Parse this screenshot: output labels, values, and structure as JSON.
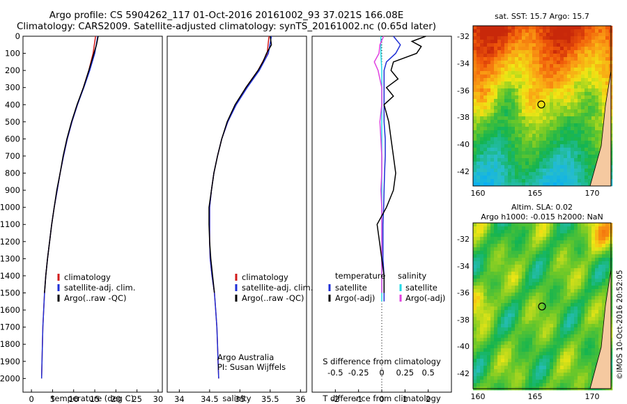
{
  "header": {
    "title_line1": "Argo profile: CS 5904262_117 01-Oct-2016 20161002_93 37.021S 166.08E",
    "title_line2": "Climatology: CARS2009. Satellite-adjusted climatology: synTS_20161002.nc (0.65d later)"
  },
  "colors": {
    "climatology": "#d11a1a",
    "satellite": "#1f2fd6",
    "argo": "#000000",
    "salinity_sat": "#22d8e6",
    "salinity_argo": "#e040e0"
  },
  "depth_axis": {
    "ticks": [
      0,
      100,
      200,
      300,
      400,
      500,
      600,
      700,
      800,
      900,
      1000,
      1100,
      1200,
      1300,
      1400,
      1500,
      1600,
      1700,
      1800,
      1900,
      2000
    ]
  },
  "panel_temperature": {
    "xlabel": "temperature (deg C)",
    "xticks": [
      0,
      5,
      10,
      15,
      20,
      25,
      30
    ],
    "xlim": [
      -2,
      31
    ],
    "legend": [
      "climatology",
      "satellite-adj. clim.",
      "Argo(..raw -QC)"
    ]
  },
  "panel_salinity": {
    "xlabel": "salinity",
    "xticks": [
      "34",
      "34.5",
      "35",
      "35.5",
      "36"
    ],
    "xlim": [
      33.8,
      36.1
    ],
    "legend": [
      "climatology",
      "satellite-adj. clim.",
      "Argo(..raw -QC)"
    ],
    "credit_line1": "Argo Australia",
    "credit_line2": "PI: Susan Wijffels"
  },
  "panel_diff": {
    "top_xlabel": "S difference from climatology",
    "top_xticks": [
      "-0.5",
      "-0.25",
      "0",
      "0.25",
      "0.5"
    ],
    "bottom_xlabel": "T difference from climatology",
    "bottom_xticks": [
      "-2",
      "-1",
      "0",
      "1",
      "2"
    ],
    "legend_temp_title": "temperature",
    "legend_temp": [
      "satellite",
      "Argo(-adj)"
    ],
    "legend_sal_title": "salinity",
    "legend_sal": [
      "satellite",
      "Argo(-adj)"
    ]
  },
  "map_sst": {
    "title": "sat. SST: 15.7  Argo: 15.7",
    "yticks": [
      "-32",
      "-34",
      "-36",
      "-38",
      "-40",
      "-42"
    ],
    "xticks": [
      "160",
      "165",
      "170"
    ]
  },
  "map_sla": {
    "title_line1": "Altim. SLA: 0.02",
    "title_line2": "Argo h1000: -0.015 h2000: NaN",
    "yticks": [
      "-32",
      "-34",
      "-36",
      "-38",
      "-40",
      "-42"
    ],
    "xticks": [
      "160",
      "165",
      "170"
    ]
  },
  "stamp": "©IMOS 10-Oct-2016 20:52:05",
  "chart_data": [
    {
      "type": "line",
      "xlabel": "temperature (deg C)",
      "ylabel": "",
      "y_reversed": true,
      "xlim": [
        -2,
        31
      ],
      "ylim": [
        2000,
        0
      ],
      "series": [
        {
          "name": "climatology",
          "y": [
            0,
            100,
            200,
            300,
            400,
            500,
            600,
            700,
            800,
            900,
            1000,
            1100,
            1200,
            1300,
            1400,
            1500,
            1600,
            1700,
            1800,
            1900,
            2000
          ],
          "x": [
            15.2,
            14.6,
            13.6,
            12.3,
            10.9,
            9.6,
            8.5,
            7.6,
            6.8,
            6.1,
            5.4,
            4.8,
            4.3,
            3.8,
            3.4,
            3.1,
            2.9,
            2.7,
            2.6,
            2.5,
            2.4
          ]
        },
        {
          "name": "satellite-adj. clim.",
          "y": [
            0,
            100,
            200,
            300,
            400,
            500,
            600,
            700,
            800,
            900,
            1000,
            1100,
            1200,
            1300,
            1400,
            1500,
            1600,
            1700,
            1800,
            1900,
            2000
          ],
          "x": [
            15.7,
            15.0,
            13.8,
            12.4,
            10.9,
            9.6,
            8.5,
            7.6,
            6.8,
            6.1,
            5.4,
            4.8,
            4.3,
            3.8,
            3.4,
            3.1,
            2.9,
            2.7,
            2.6,
            2.5,
            2.4
          ]
        },
        {
          "name": "Argo(..raw -QC)",
          "y": [
            0,
            50,
            100,
            150,
            200,
            300,
            400,
            500,
            600,
            700,
            800,
            900,
            1000,
            1100,
            1200,
            1300,
            1400,
            1500
          ],
          "x": [
            15.8,
            15.4,
            14.8,
            14.2,
            13.6,
            12.3,
            10.8,
            9.5,
            8.4,
            7.5,
            6.8,
            6.0,
            5.4,
            4.8,
            4.3,
            3.8,
            3.4,
            3.1
          ]
        }
      ]
    },
    {
      "type": "line",
      "xlabel": "salinity",
      "ylabel": "",
      "y_reversed": true,
      "xlim": [
        33.8,
        36.1
      ],
      "ylim": [
        2000,
        0
      ],
      "series": [
        {
          "name": "climatology",
          "y": [
            0,
            100,
            200,
            300,
            400,
            500,
            600,
            700,
            800,
            900,
            1000,
            1100,
            1200,
            1300,
            1400,
            1500,
            1600,
            1700,
            1800,
            1900,
            2000
          ],
          "x": [
            35.48,
            35.45,
            35.3,
            35.1,
            34.93,
            34.8,
            34.7,
            34.63,
            34.57,
            34.53,
            34.5,
            34.5,
            34.5,
            34.51,
            34.54,
            34.58,
            34.6,
            34.62,
            34.63,
            34.64,
            34.65
          ]
        },
        {
          "name": "satellite-adj. clim.",
          "y": [
            0,
            100,
            200,
            300,
            400,
            500,
            600,
            700,
            800,
            900,
            1000,
            1100,
            1200,
            1300,
            1400,
            1500,
            1600,
            1700,
            1800,
            1900,
            2000
          ],
          "x": [
            35.52,
            35.47,
            35.32,
            35.12,
            34.94,
            34.8,
            34.7,
            34.63,
            34.57,
            34.53,
            34.5,
            34.5,
            34.5,
            34.51,
            34.54,
            34.58,
            34.6,
            34.62,
            34.63,
            34.64,
            34.65
          ]
        },
        {
          "name": "Argo(..raw -QC)",
          "y": [
            0,
            50,
            100,
            150,
            200,
            300,
            400,
            500,
            600,
            700,
            800,
            900,
            1000,
            1100,
            1200,
            1300,
            1400,
            1500
          ],
          "x": [
            35.5,
            35.52,
            35.44,
            35.38,
            35.3,
            35.1,
            34.92,
            34.79,
            34.7,
            34.63,
            34.57,
            34.53,
            34.49,
            34.49,
            34.5,
            34.52,
            34.55,
            34.58
          ]
        }
      ]
    },
    {
      "type": "line",
      "xlabel": "T difference from climatology",
      "ylabel": "",
      "y_reversed": true,
      "xlim": [
        -3,
        3
      ],
      "ylim": [
        2000,
        0
      ],
      "series": [
        {
          "name": "satellite",
          "y": [
            0,
            50,
            100,
            150,
            200,
            300,
            400,
            500,
            600,
            700,
            800,
            900,
            1000,
            1100,
            1200,
            1300,
            1400,
            1500,
            1550
          ],
          "x": [
            0.5,
            0.8,
            0.6,
            0.2,
            0.1,
            0.1,
            0.1,
            0.1,
            0.15,
            0.15,
            0.12,
            0.1,
            0.08,
            0.05,
            0.05,
            0.05,
            0.1,
            0.1,
            0.1
          ]
        },
        {
          "name": "Argo(-adj)",
          "y": [
            0,
            30,
            60,
            100,
            150,
            200,
            250,
            300,
            350,
            400,
            500,
            600,
            700,
            800,
            900,
            1000,
            1100,
            1200,
            1300,
            1400,
            1500
          ],
          "x": [
            1.9,
            1.3,
            1.7,
            1.5,
            0.5,
            0.4,
            0.7,
            0.2,
            0.5,
            0.1,
            0.3,
            0.4,
            0.5,
            0.6,
            0.5,
            0.2,
            -0.2,
            -0.1,
            0.0,
            0.1,
            0.1
          ]
        }
      ]
    },
    {
      "type": "line",
      "xlabel": "S difference from climatology",
      "ylabel": "",
      "y_reversed": true,
      "xlim": [
        -0.75,
        0.75
      ],
      "ylim": [
        2000,
        0
      ],
      "series": [
        {
          "name": "satellite",
          "y": [
            0,
            100,
            200,
            300,
            400,
            500,
            600,
            700,
            800,
            900,
            1000,
            1100,
            1200,
            1300,
            1400,
            1500,
            1550
          ],
          "x": [
            -0.01,
            -0.01,
            0.0,
            0.0,
            0.0,
            0.0,
            0.0,
            0.0,
            0.0,
            0.0,
            0.0,
            0.0,
            0.0,
            0.0,
            0.0,
            0.0,
            0.0
          ]
        },
        {
          "name": "Argo(-adj)",
          "y": [
            0,
            50,
            100,
            150,
            200,
            250,
            300,
            400,
            500,
            600,
            700,
            800,
            900,
            1000,
            1100,
            1200,
            1300,
            1400,
            1500
          ],
          "x": [
            0.02,
            -0.02,
            -0.03,
            -0.08,
            -0.04,
            -0.02,
            0.0,
            0.0,
            -0.02,
            -0.01,
            0.0,
            0.0,
            -0.01,
            0.0,
            0.0,
            0.0,
            0.0,
            0.0,
            0.0
          ]
        }
      ]
    }
  ]
}
